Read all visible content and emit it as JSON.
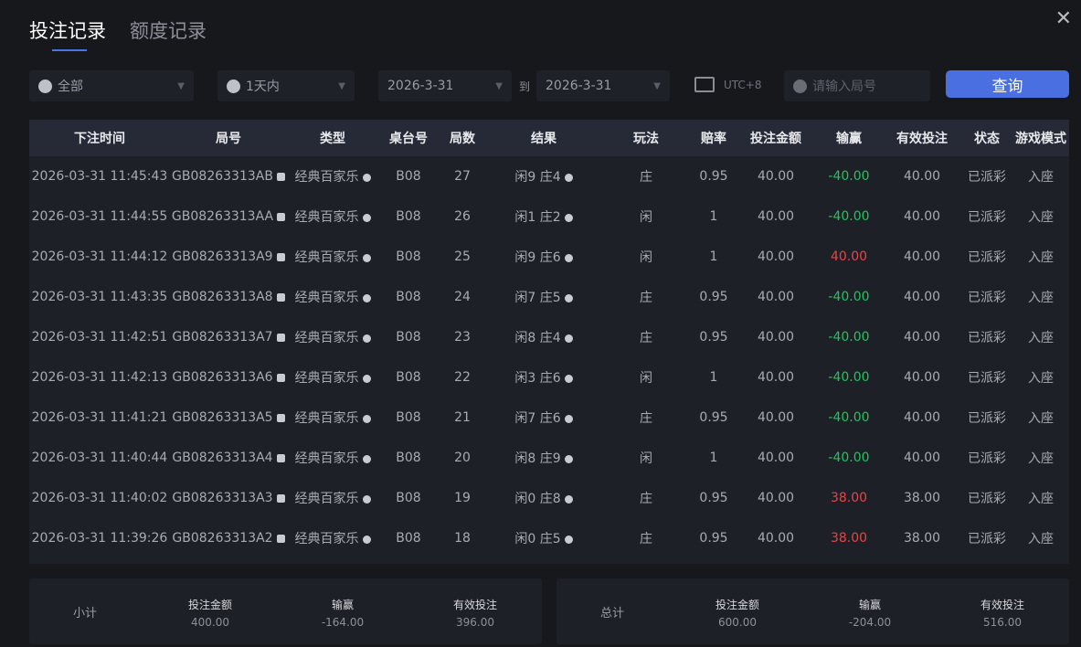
{
  "tabs": [
    "投注记录",
    "额度记录"
  ],
  "filters": {
    "game": "全部",
    "range": "1天内",
    "start": "2026-3-31",
    "to": "到",
    "end": "2026-3-31",
    "timezone": "UTC+8",
    "round_placeholder": "请输入局号",
    "query": "查询"
  },
  "columns": [
    "下注时间",
    "局号",
    "类型",
    "桌台号",
    "局数",
    "结果",
    "玩法",
    "赔率",
    "投注金额",
    "输赢",
    "有效投注",
    "状态",
    "游戏模式"
  ],
  "rows": [
    [
      "2026-03-31 11:45:43",
      "GB08263313AB",
      "经典百家乐",
      "B08",
      "27",
      "闲9 庄4",
      "庄",
      "0.95",
      "40.00",
      "-40.00",
      "40.00",
      "已派彩",
      "入座"
    ],
    [
      "2026-03-31 11:44:55",
      "GB08263313AA",
      "经典百家乐",
      "B08",
      "26",
      "闲1 庄2",
      "闲",
      "1",
      "40.00",
      "-40.00",
      "40.00",
      "已派彩",
      "入座"
    ],
    [
      "2026-03-31 11:44:12",
      "GB08263313A9",
      "经典百家乐",
      "B08",
      "25",
      "闲9 庄6",
      "闲",
      "1",
      "40.00",
      "40.00",
      "40.00",
      "已派彩",
      "入座"
    ],
    [
      "2026-03-31 11:43:35",
      "GB08263313A8",
      "经典百家乐",
      "B08",
      "24",
      "闲7 庄5",
      "庄",
      "0.95",
      "40.00",
      "-40.00",
      "40.00",
      "已派彩",
      "入座"
    ],
    [
      "2026-03-31 11:42:51",
      "GB08263313A7",
      "经典百家乐",
      "B08",
      "23",
      "闲8 庄4",
      "庄",
      "0.95",
      "40.00",
      "-40.00",
      "40.00",
      "已派彩",
      "入座"
    ],
    [
      "2026-03-31 11:42:13",
      "GB08263313A6",
      "经典百家乐",
      "B08",
      "22",
      "闲3 庄6",
      "闲",
      "1",
      "40.00",
      "-40.00",
      "40.00",
      "已派彩",
      "入座"
    ],
    [
      "2026-03-31 11:41:21",
      "GB08263313A5",
      "经典百家乐",
      "B08",
      "21",
      "闲7 庄6",
      "庄",
      "0.95",
      "40.00",
      "-40.00",
      "40.00",
      "已派彩",
      "入座"
    ],
    [
      "2026-03-31 11:40:44",
      "GB08263313A4",
      "经典百家乐",
      "B08",
      "20",
      "闲8 庄9",
      "闲",
      "1",
      "40.00",
      "-40.00",
      "40.00",
      "已派彩",
      "入座"
    ],
    [
      "2026-03-31 11:40:02",
      "GB08263313A3",
      "经典百家乐",
      "B08",
      "19",
      "闲0 庄8",
      "庄",
      "0.95",
      "40.00",
      "38.00",
      "38.00",
      "已派彩",
      "入座"
    ],
    [
      "2026-03-31 11:39:26",
      "GB08263313A2",
      "经典百家乐",
      "B08",
      "18",
      "闲0 庄5",
      "庄",
      "0.95",
      "40.00",
      "38.00",
      "38.00",
      "已派彩",
      "入座"
    ]
  ],
  "subtotal": {
    "label": "小计",
    "bet_label": "投注金额",
    "bet": "400.00",
    "win_label": "输赢",
    "win": "-164.00",
    "valid_label": "有效投注",
    "valid": "396.00"
  },
  "total": {
    "label": "总计",
    "bet_label": "投注金额",
    "bet": "600.00",
    "win_label": "输赢",
    "win": "-204.00",
    "valid_label": "有效投注",
    "valid": "516.00"
  },
  "colors": {
    "accent": "#4a6fe0",
    "loss": "#27c15b",
    "win": "#e84444"
  }
}
